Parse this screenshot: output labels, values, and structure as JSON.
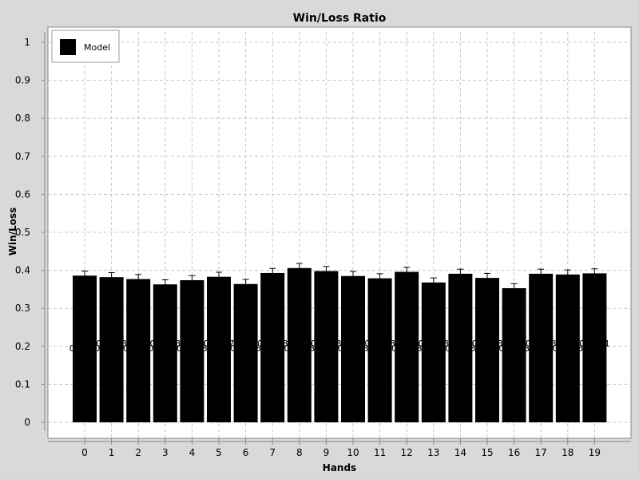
{
  "chart_data": {
    "type": "bar",
    "title": "Win/Loss Ratio",
    "xlabel": "Hands",
    "ylabel": "Win/Loss",
    "categories": [
      "0",
      "1",
      "2",
      "3",
      "4",
      "5",
      "6",
      "7",
      "8",
      "9",
      "10",
      "11",
      "12",
      "13",
      "14",
      "15",
      "16",
      "17",
      "18",
      "19"
    ],
    "series": [
      {
        "name": "Model",
        "color": "#000000",
        "values": [
          0.386,
          0.382,
          0.377,
          0.363,
          0.374,
          0.383,
          0.364,
          0.393,
          0.406,
          0.398,
          0.385,
          0.379,
          0.396,
          0.368,
          0.391,
          0.38,
          0.353,
          0.391,
          0.389,
          0.392
        ],
        "error": [
          0.012,
          0.012,
          0.012,
          0.012,
          0.012,
          0.012,
          0.012,
          0.012,
          0.012,
          0.012,
          0.012,
          0.012,
          0.012,
          0.012,
          0.012,
          0.012,
          0.012,
          0.012,
          0.012,
          0.012
        ],
        "value_labels": [
          "0.3860",
          "0.3818",
          "0.3770",
          "0.3628",
          "0.3738",
          "0.3827",
          "0.3638",
          "0.3928",
          "0.4058",
          "0.3978",
          "0.3848",
          "0.3788",
          "0.3958",
          "0.3678",
          "0.3908",
          "0.3798",
          "0.3528",
          "0.3908",
          "0.3888",
          "0.3921"
        ]
      }
    ],
    "ylim": [
      0,
      1
    ],
    "yticks": [
      "0",
      "0.1",
      "0.2",
      "0.3",
      "0.4",
      "0.5",
      "0.6",
      "0.7",
      "0.8",
      "0.9",
      "1"
    ],
    "grid": true,
    "legend": "top-left"
  }
}
